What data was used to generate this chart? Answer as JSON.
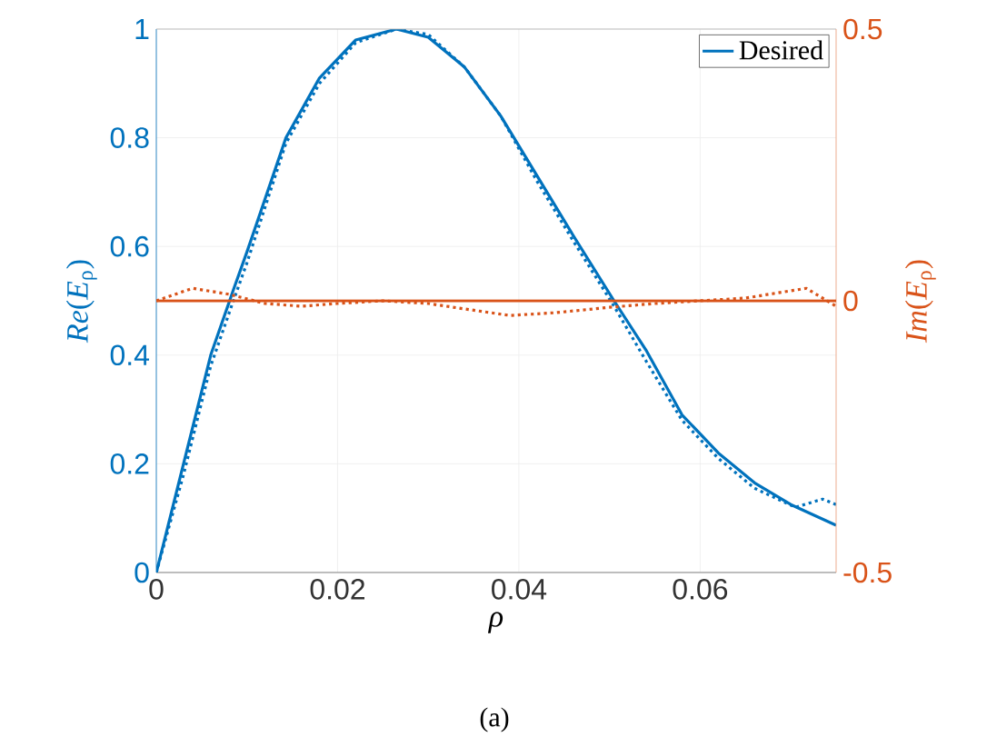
{
  "chart_data": {
    "type": "line",
    "xlabel": "*ρ*",
    "ylabel": "*Re*(*E*$_{ρ}$)",
    "y2label": "*Im*(*E*$_{ρ}$)",
    "annotations": [
      "(a)"
    ],
    "xlim": [
      0,
      0.075
    ],
    "xticks": [
      0,
      0.02,
      0.04,
      0.06
    ],
    "ylim": [
      0,
      1
    ],
    "yticks": [
      0,
      0.2,
      0.4,
      0.6,
      0.8,
      1
    ],
    "y2lim": [
      -0.5,
      0.5
    ],
    "y2ticks": [
      -0.5,
      0,
      0.5
    ],
    "grid": true,
    "legend": "top right",
    "series": [
      {
        "name": "Desired",
        "color": "#0072bd",
        "line_style": "solid",
        "x": [
          0,
          0.003,
          0.006,
          0.0085,
          0.01,
          0.0143,
          0.018,
          0.022,
          0.0265,
          0.03,
          0.034,
          0.038,
          0.042,
          0.046,
          0.0505,
          0.054,
          0.058,
          0.062,
          0.066,
          0.07,
          0.075
        ],
        "values": [
          0,
          0.2,
          0.4,
          0.52,
          0.59,
          0.8,
          0.91,
          0.98,
          1.0,
          0.985,
          0.93,
          0.84,
          0.73,
          0.62,
          0.5,
          0.41,
          0.29,
          0.22,
          0.165,
          0.125,
          0.087
        ]
      },
      {
        "color": "#0072bd",
        "line_style": "dotted",
        "x": [
          0,
          0.003,
          0.006,
          0.0085,
          0.01,
          0.0143,
          0.018,
          0.022,
          0.0265,
          0.03,
          0.034,
          0.038,
          0.042,
          0.046,
          0.0505,
          0.054,
          0.058,
          0.062,
          0.066,
          0.0705,
          0.0735,
          0.075
        ],
        "values": [
          0,
          0.18,
          0.38,
          0.5,
          0.57,
          0.79,
          0.9,
          0.975,
          1.0,
          0.99,
          0.93,
          0.84,
          0.72,
          0.61,
          0.49,
          0.39,
          0.28,
          0.21,
          0.155,
          0.12,
          0.135,
          0.125
        ]
      },
      {
        "color": "#d95319",
        "line_style": "solid",
        "axis": "y2",
        "x": [
          0,
          0.075
        ],
        "values": [
          0,
          0
        ]
      },
      {
        "color": "#d95319",
        "line_style": "dotted",
        "axis": "y2",
        "x": [
          0,
          0.004,
          0.008,
          0.012,
          0.016,
          0.02,
          0.025,
          0.03,
          0.034,
          0.039,
          0.044,
          0.05,
          0.055,
          0.06,
          0.065,
          0.0717,
          0.075
        ],
        "values": [
          0,
          0.023,
          0.012,
          -0.005,
          -0.01,
          -0.005,
          0,
          -0.005,
          -0.015,
          -0.027,
          -0.022,
          -0.012,
          -0.005,
          0,
          0.005,
          0.023,
          -0.01
        ]
      }
    ]
  }
}
